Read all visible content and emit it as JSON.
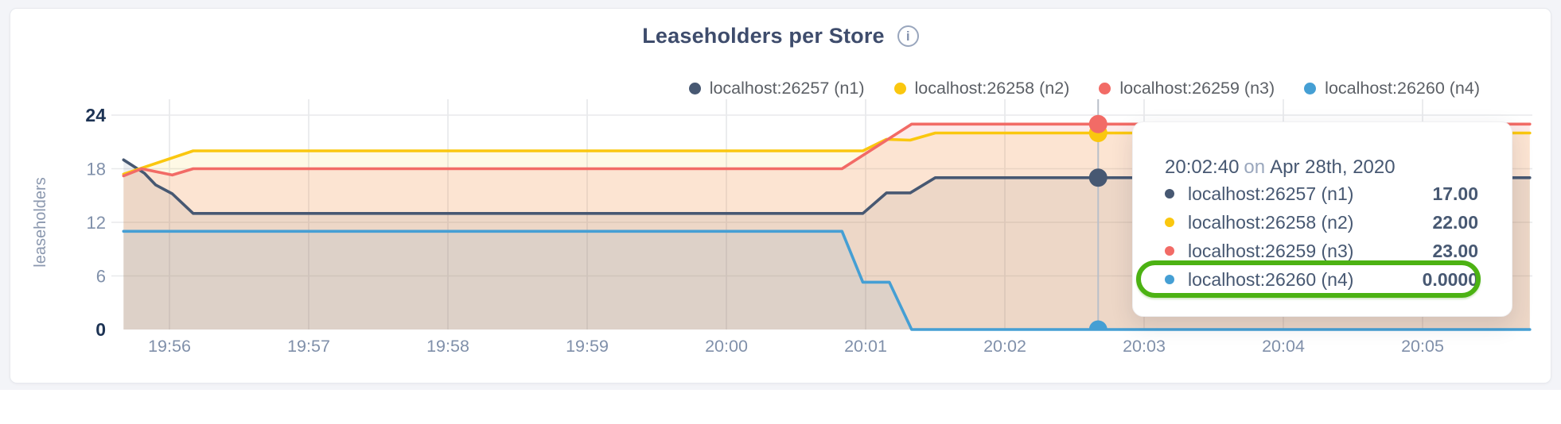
{
  "card": {
    "title": "Leaseholders per Store",
    "info_glyph": "i"
  },
  "legend": {
    "items": [
      {
        "label": "localhost:26257 (n1)",
        "color": "#475872"
      },
      {
        "label": "localhost:26258 (n2)",
        "color": "#fac70f"
      },
      {
        "label": "localhost:26259 (n3)",
        "color": "#f26b66"
      },
      {
        "label": "localhost:26260 (n4)",
        "color": "#459fd4"
      }
    ]
  },
  "tooltip": {
    "time": "20:02:40",
    "on_word": "on",
    "date": "Apr 28th, 2020",
    "highlight_color": "#4cb213",
    "rows": [
      {
        "label": "localhost:26257 (n1)",
        "value": "17.00",
        "color": "#475872",
        "highlighted": false
      },
      {
        "label": "localhost:26258 (n2)",
        "value": "22.00",
        "color": "#fac70f",
        "highlighted": false
      },
      {
        "label": "localhost:26259 (n3)",
        "value": "23.00",
        "color": "#f26b66",
        "highlighted": false
      },
      {
        "label": "localhost:26260 (n4)",
        "value": "0.0000",
        "color": "#459fd4",
        "highlighted": true
      }
    ]
  },
  "chart_data": {
    "type": "area",
    "title": "Leaseholders per Store",
    "ylabel": "leaseholders",
    "ylim": [
      0,
      24
    ],
    "y_ticks": [
      0,
      6,
      12,
      18,
      24
    ],
    "y_ticks_bold": [
      0,
      24
    ],
    "x_ticks": [
      "19:56",
      "19:57",
      "19:58",
      "19:59",
      "20:00",
      "20:01",
      "20:02",
      "20:03",
      "20:04",
      "20:05"
    ],
    "x_range_minutes": [
      -0.33,
      9.77
    ],
    "grid": true,
    "legend_position": "top-right",
    "series": [
      {
        "name": "localhost:26257 (n1)",
        "color": "#475872",
        "points": [
          [
            -0.33,
            19
          ],
          [
            -0.18,
            17.5
          ],
          [
            -0.1,
            16.2
          ],
          [
            0.02,
            15.2
          ],
          [
            0.17,
            13
          ],
          [
            4.98,
            13
          ],
          [
            5.15,
            15.3
          ],
          [
            5.32,
            15.3
          ],
          [
            5.5,
            17
          ],
          [
            9.77,
            17
          ]
        ]
      },
      {
        "name": "localhost:26258 (n2)",
        "color": "#fac70f",
        "points": [
          [
            -0.33,
            17.4
          ],
          [
            0.17,
            20
          ],
          [
            4.98,
            20
          ],
          [
            5.15,
            21.3
          ],
          [
            5.32,
            21.2
          ],
          [
            5.5,
            22
          ],
          [
            9.77,
            22
          ]
        ]
      },
      {
        "name": "localhost:26259 (n3)",
        "color": "#f26b66",
        "points": [
          [
            -0.33,
            17.2
          ],
          [
            -0.2,
            18
          ],
          [
            0.02,
            17.3
          ],
          [
            0.17,
            18
          ],
          [
            4.83,
            18
          ],
          [
            5.33,
            23
          ],
          [
            9.77,
            23
          ]
        ]
      },
      {
        "name": "localhost:26260 (n4)",
        "color": "#459fd4",
        "points": [
          [
            -0.33,
            11
          ],
          [
            4.83,
            11
          ],
          [
            4.98,
            5.3
          ],
          [
            5.17,
            5.3
          ],
          [
            5.33,
            0
          ],
          [
            9.77,
            0
          ]
        ]
      }
    ],
    "hover": {
      "time": "20:02:40",
      "x_minutes": 6.67,
      "values": [
        17,
        22,
        23,
        0
      ]
    }
  }
}
